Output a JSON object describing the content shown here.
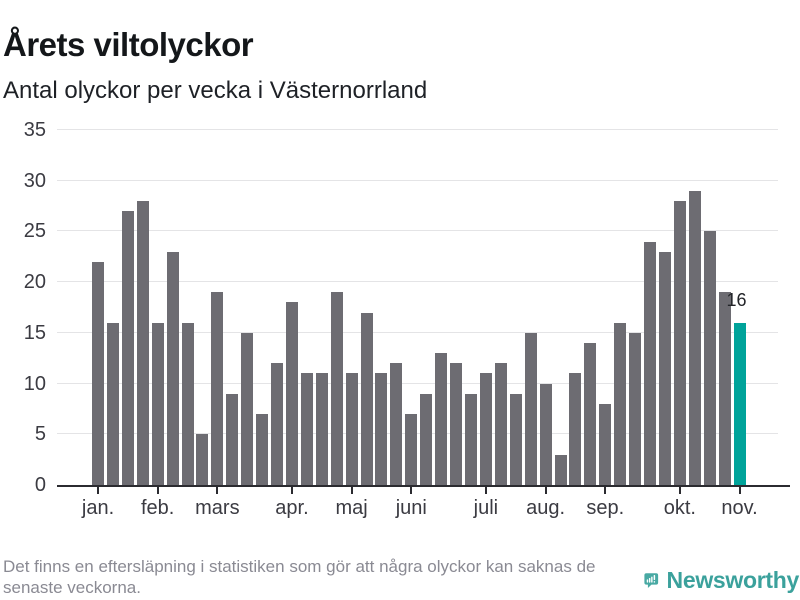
{
  "header": {
    "title": "Årets viltolyckor",
    "subtitle": "Antal olyckor per vecka i Västernorrland"
  },
  "chart_data": {
    "type": "bar",
    "title": "Årets viltolyckor",
    "subtitle": "Antal olyckor per vecka i Västernorrland",
    "x_unit": "vecka",
    "x": [
      1,
      2,
      3,
      4,
      5,
      6,
      7,
      8,
      9,
      10,
      11,
      12,
      13,
      14,
      15,
      16,
      17,
      18,
      19,
      20,
      21,
      22,
      23,
      24,
      25,
      26,
      27,
      28,
      29,
      30,
      31,
      32,
      33,
      34,
      35,
      36,
      37,
      38,
      39,
      40,
      41,
      42,
      43,
      44
    ],
    "values": [
      22,
      16,
      27,
      28,
      16,
      23,
      16,
      5,
      19,
      9,
      15,
      7,
      12,
      18,
      11,
      11,
      19,
      11,
      17,
      11,
      12,
      7,
      9,
      13,
      12,
      9,
      11,
      12,
      9,
      15,
      10,
      3,
      11,
      14,
      8,
      16,
      15,
      24,
      23,
      28,
      29,
      25,
      19,
      16
    ],
    "month_ticks": [
      {
        "label": "jan.",
        "week": 1
      },
      {
        "label": "feb.",
        "week": 5
      },
      {
        "label": "mars",
        "week": 9
      },
      {
        "label": "apr.",
        "week": 14
      },
      {
        "label": "maj",
        "week": 18
      },
      {
        "label": "juni",
        "week": 22
      },
      {
        "label": "juli",
        "week": 27
      },
      {
        "label": "aug.",
        "week": 31
      },
      {
        "label": "sep.",
        "week": 35
      },
      {
        "label": "okt.",
        "week": 40
      },
      {
        "label": "nov.",
        "week": 44
      }
    ],
    "yticks": [
      0,
      5,
      10,
      15,
      20,
      25,
      30,
      35
    ],
    "ylim": [
      0,
      35
    ],
    "grid": "horizontal",
    "legend": "none",
    "highlight": {
      "week": 44,
      "value": 16,
      "label": "16",
      "color": "#00a39a"
    },
    "bar_color": "#6d6c72",
    "gridline_color": "#e4e4e6",
    "axis_color": "#2b2b30",
    "tick_label_color": "#3b3b42"
  },
  "footer": {
    "note": "Det finns en eftersläpning i statistiken som gör att några olyckor kan saknas de senaste veckorna.",
    "brand": "Newsworthy",
    "brand_color": "#3ba19c",
    "logo_color": "#48a9a3"
  }
}
